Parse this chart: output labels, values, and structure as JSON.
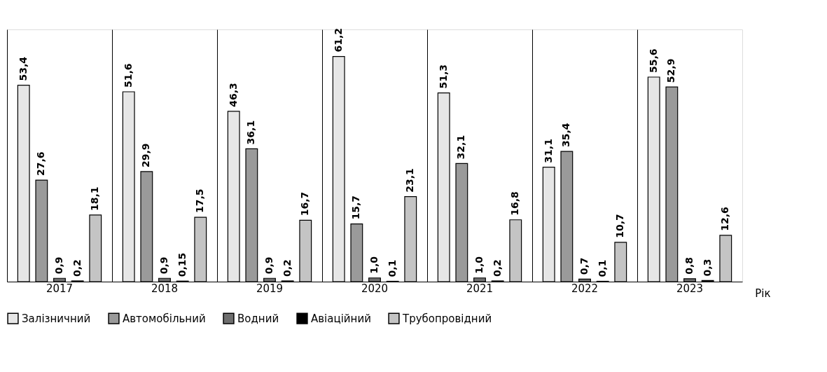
{
  "chart_data": {
    "type": "bar",
    "xlabel": "Рік",
    "categories": [
      "2017",
      "2018",
      "2019",
      "2020",
      "2021",
      "2022",
      "2023"
    ],
    "series": [
      {
        "name": "Залізничний",
        "color": "#e6e6e6",
        "values": [
          53.4,
          51.6,
          46.3,
          61.2,
          51.3,
          31.1,
          55.6
        ],
        "value_labels": [
          "53,4",
          "51,6",
          "46,3",
          "61,2",
          "51,3",
          "31,1",
          "55,6"
        ]
      },
      {
        "name": "Автомобільний",
        "color": "#9a9a9a",
        "values": [
          27.6,
          29.9,
          36.1,
          15.7,
          32.1,
          35.4,
          52.9
        ],
        "value_labels": [
          "27,6",
          "29,9",
          "36,1",
          "15,7",
          "32,1",
          "35,4",
          "52,9"
        ]
      },
      {
        "name": "Водний",
        "color": "#6e6e6e",
        "values": [
          0.9,
          0.9,
          0.9,
          1.0,
          1.0,
          0.7,
          0.8
        ],
        "value_labels": [
          "0,9",
          "0,9",
          "0,9",
          "1,0",
          "1,0",
          "0,7",
          "0,8"
        ]
      },
      {
        "name": "Авіаційний",
        "color": "#000000",
        "values": [
          0.2,
          0.15,
          0.2,
          0.1,
          0.2,
          0.1,
          0.3
        ],
        "value_labels": [
          "0,2",
          "0,15",
          "0,2",
          "0,1",
          "0,2",
          "0,1",
          "0,3"
        ]
      },
      {
        "name": "Трубопровідний",
        "color": "#c4c4c4",
        "values": [
          18.1,
          17.5,
          16.7,
          23.1,
          16.8,
          10.7,
          12.6
        ],
        "value_labels": [
          "18,1",
          "17,5",
          "16,7",
          "23,1",
          "16,8",
          "10,7",
          "12,6"
        ]
      }
    ],
    "legend": "bottom"
  }
}
